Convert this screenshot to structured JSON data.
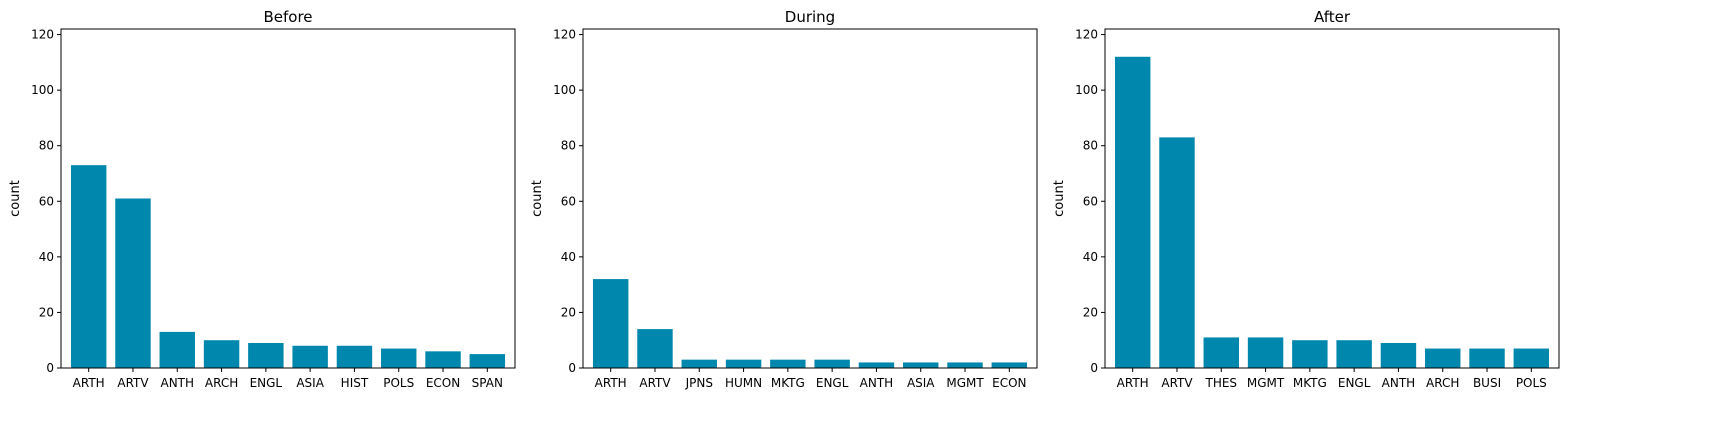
{
  "chart_data": [
    {
      "type": "bar",
      "title": "Before",
      "ylabel": "count",
      "xlabel": "",
      "ylim": [
        0,
        122
      ],
      "yticks": [
        0,
        20,
        40,
        60,
        80,
        100,
        120
      ],
      "color": "#0087ad",
      "categories": [
        "ARTH",
        "ARTV",
        "ANTH",
        "ARCH",
        "ENGL",
        "ASIA",
        "HIST",
        "POLS",
        "ECON",
        "SPAN"
      ],
      "values": [
        73,
        61,
        13,
        10,
        9,
        8,
        8,
        7,
        6,
        5
      ]
    },
    {
      "type": "bar",
      "title": "During",
      "ylabel": "count",
      "xlabel": "",
      "ylim": [
        0,
        122
      ],
      "yticks": [
        0,
        20,
        40,
        60,
        80,
        100,
        120
      ],
      "color": "#0087ad",
      "categories": [
        "ARTH",
        "ARTV",
        "JPNS",
        "HUMN",
        "MKTG",
        "ENGL",
        "ANTH",
        "ASIA",
        "MGMT",
        "ECON"
      ],
      "values": [
        32,
        14,
        3,
        3,
        3,
        3,
        2,
        2,
        2,
        2
      ]
    },
    {
      "type": "bar",
      "title": "After",
      "ylabel": "count",
      "xlabel": "",
      "ylim": [
        0,
        122
      ],
      "yticks": [
        0,
        20,
        40,
        60,
        80,
        100,
        120
      ],
      "color": "#0087ad",
      "categories": [
        "ARTH",
        "ARTV",
        "THES",
        "MGMT",
        "MKTG",
        "ENGL",
        "ANTH",
        "ARCH",
        "BUSI",
        "POLS"
      ],
      "values": [
        112,
        83,
        11,
        11,
        10,
        10,
        9,
        7,
        7,
        7
      ]
    }
  ]
}
